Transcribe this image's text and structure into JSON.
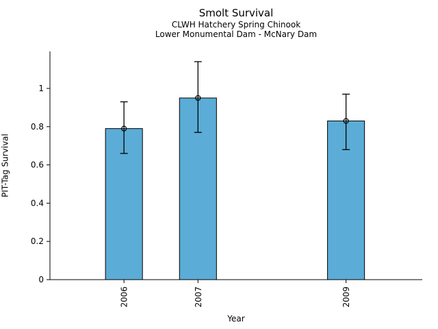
{
  "chart_data": {
    "type": "bar",
    "title": "Smolt Survival",
    "subtitle_line1": "CLWH Hatchery Spring Chinook",
    "subtitle_line2": "Lower Monumental Dam - McNary Dam",
    "xlabel": "Year",
    "ylabel": "PIT-Tag Survival",
    "categories": [
      "2006",
      "2007",
      "2009"
    ],
    "x_values": [
      2006,
      2007,
      2009
    ],
    "values": [
      0.79,
      0.95,
      0.83
    ],
    "error_low": [
      0.66,
      0.77,
      0.68
    ],
    "error_high": [
      0.93,
      1.14,
      0.97
    ],
    "yticks": [
      0,
      0.2,
      0.4,
      0.6,
      0.8,
      1
    ],
    "ytick_labels": [
      "0",
      "0.2",
      "0.4",
      "0.6",
      "0.8",
      "1"
    ],
    "xlim": [
      2005.0,
      2010.03
    ],
    "ylim": [
      0,
      1.19
    ],
    "bar_width_years": 0.5,
    "bar_color": "#5BACD6",
    "bar_edge_color": "#000000",
    "error_color": "#000000",
    "axis_color": "#000000",
    "marker": "open-circle",
    "legend": "none",
    "grid": false,
    "background": "#FFFFFF"
  }
}
